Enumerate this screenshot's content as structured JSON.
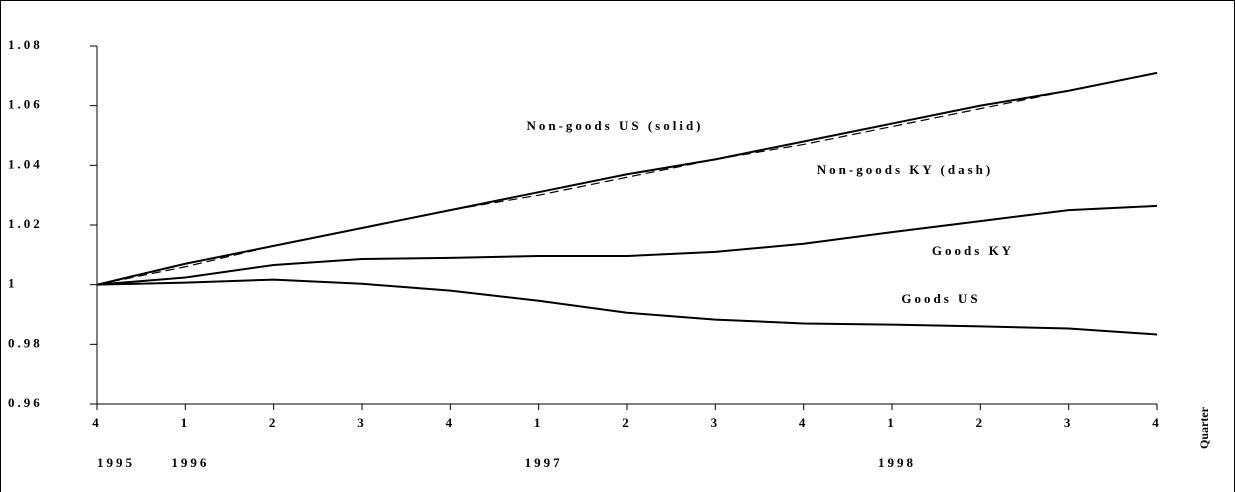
{
  "chart_data": {
    "type": "line",
    "categories": [
      "4",
      "1",
      "2",
      "3",
      "4",
      "1",
      "2",
      "3",
      "4",
      "1",
      "2",
      "3",
      "4"
    ],
    "years": [
      "1995",
      "1996",
      null,
      null,
      null,
      "1997",
      null,
      null,
      null,
      "1998",
      null,
      null,
      null
    ],
    "x_label": "Quarter",
    "series": [
      {
        "name": "Non-goods US (solid)",
        "color": "#000000",
        "style": "solid",
        "values": [
          1.0,
          1.007,
          1.013,
          1.019,
          1.025,
          1.031,
          1.037,
          1.042,
          1.048,
          1.054,
          1.06,
          1.065,
          1.071
        ]
      },
      {
        "name": "Non-goods KY (dash)",
        "color": "#000000",
        "style": "dashed",
        "values": [
          1.0,
          1.006,
          1.013,
          1.019,
          1.025,
          1.03,
          1.036,
          1.042,
          1.047,
          1.053,
          1.059,
          1.065,
          1.071
        ]
      },
      {
        "name": "Goods KY",
        "color": "#000000",
        "style": "solid",
        "values": [
          1.0,
          1.0024,
          1.0066,
          1.0086,
          1.009,
          1.0096,
          1.0096,
          1.011,
          1.0137,
          1.0176,
          1.0213,
          1.025,
          1.0264
        ]
      },
      {
        "name": "Goods US",
        "color": "#000000",
        "style": "solid",
        "values": [
          1.0,
          1.0007,
          1.0017,
          1.0003,
          0.998,
          0.9946,
          0.9906,
          0.9883,
          0.987,
          0.9866,
          0.986,
          0.9853,
          0.9833
        ]
      }
    ],
    "ylim": [
      0.96,
      1.08
    ],
    "yticks": [
      0.96,
      0.98,
      1,
      1.02,
      1.04,
      1.06,
      1.08
    ],
    "grid": false
  }
}
